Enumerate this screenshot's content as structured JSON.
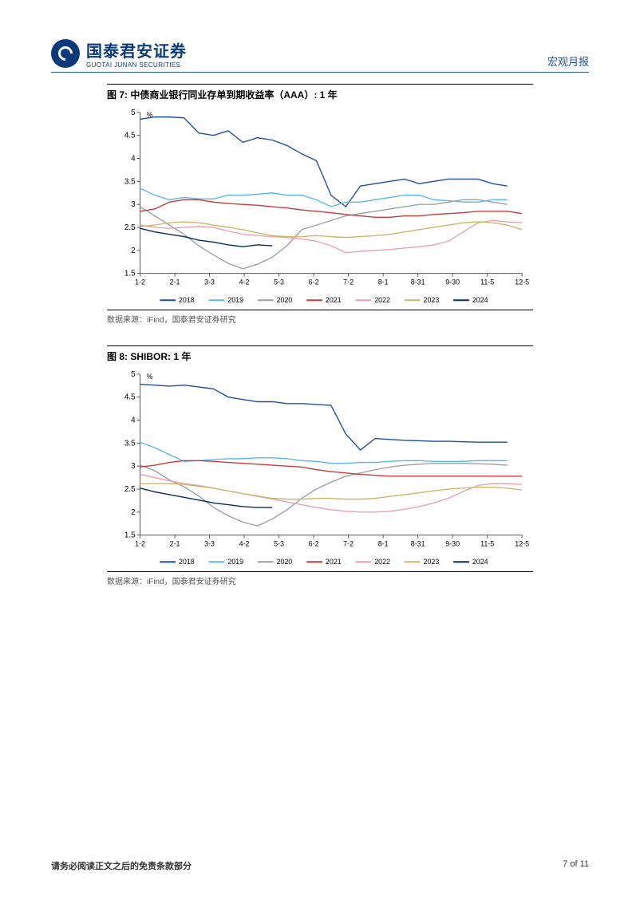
{
  "header": {
    "company_name": "国泰君安证券",
    "company_en": "GUOTAI JUNAN SECURITIES",
    "doc_type": "宏观月报"
  },
  "chart7": {
    "type": "line",
    "title": "图 7:  中债商业银行同业存单到期收益率（AAA）:  1 年",
    "source": "数据来源：iFind，国泰君安证券研究",
    "y_unit": "%",
    "ylim": [
      1.5,
      5
    ],
    "ytick": [
      1.5,
      2,
      2.5,
      3,
      3.5,
      4,
      4.5,
      5
    ],
    "x_labels": [
      "1-2",
      "2-1",
      "3-3",
      "4-2",
      "5-3",
      "6-2",
      "7-2",
      "8-1",
      "8-31",
      "9-30",
      "11-5",
      "12-5"
    ],
    "legend": [
      "2018",
      "2019",
      "2020",
      "2021",
      "2022",
      "2023",
      "2024"
    ],
    "colors": {
      "2018": "#1f4e9c",
      "2019": "#5bb5e8",
      "2020": "#9aa0a6",
      "2021": "#c43c3c",
      "2022": "#e7a1b0",
      "2023": "#c9b86a",
      "2024": "#0b2a5c"
    },
    "line_width": 1.4,
    "background_color": "#ffffff",
    "series": {
      "2018": [
        4.85,
        4.9,
        4.9,
        4.88,
        4.55,
        4.5,
        4.6,
        4.35,
        4.45,
        4.4,
        4.28,
        4.1,
        3.95,
        3.2,
        2.95,
        3.4,
        3.45,
        3.5,
        3.55,
        3.45,
        3.5,
        3.55,
        3.55,
        3.55,
        3.45,
        3.4
      ],
      "2019": [
        3.35,
        3.2,
        3.1,
        3.15,
        3.12,
        3.12,
        3.2,
        3.2,
        3.22,
        3.25,
        3.2,
        3.2,
        3.1,
        2.95,
        3.05,
        3.05,
        3.1,
        3.15,
        3.2,
        3.2,
        3.1,
        3.08,
        3.05,
        3.05,
        3.1,
        3.1
      ],
      "2020": [
        2.95,
        2.75,
        2.55,
        2.35,
        2.1,
        1.9,
        1.72,
        1.6,
        1.7,
        1.85,
        2.1,
        2.45,
        2.55,
        2.65,
        2.75,
        2.8,
        2.85,
        2.9,
        2.95,
        3.0,
        3.0,
        3.05,
        3.1,
        3.1,
        3.05,
        3.0
      ],
      "2021": [
        2.85,
        2.9,
        3.05,
        3.1,
        3.1,
        3.05,
        3.02,
        3.0,
        2.98,
        2.95,
        2.92,
        2.88,
        2.85,
        2.82,
        2.78,
        2.75,
        2.72,
        2.72,
        2.75,
        2.75,
        2.78,
        2.8,
        2.82,
        2.85,
        2.85,
        2.85,
        2.8
      ],
      "2022": [
        2.55,
        2.5,
        2.48,
        2.5,
        2.52,
        2.5,
        2.42,
        2.35,
        2.32,
        2.3,
        2.28,
        2.25,
        2.2,
        2.1,
        1.95,
        1.98,
        2.0,
        2.02,
        2.05,
        2.08,
        2.12,
        2.2,
        2.4,
        2.6,
        2.65,
        2.62,
        2.6
      ],
      "2023": [
        2.52,
        2.55,
        2.6,
        2.62,
        2.6,
        2.55,
        2.5,
        2.45,
        2.38,
        2.32,
        2.3,
        2.3,
        2.32,
        2.3,
        2.28,
        2.3,
        2.32,
        2.35,
        2.4,
        2.45,
        2.5,
        2.55,
        2.6,
        2.62,
        2.6,
        2.55,
        2.45
      ],
      "2024": [
        2.48,
        2.4,
        2.35,
        2.3,
        2.22,
        2.18,
        2.12,
        2.08,
        2.12,
        2.1
      ]
    }
  },
  "chart8": {
    "type": "line",
    "title": "图 8:  SHIBOR:  1 年",
    "source": "数据来源：iFind，国泰君安证券研究",
    "y_unit": "%",
    "ylim": [
      1.5,
      5
    ],
    "ytick": [
      1.5,
      2,
      2.5,
      3,
      3.5,
      4,
      4.5,
      5
    ],
    "x_labels": [
      "1-2",
      "2-1",
      "3-3",
      "4-2",
      "5-3",
      "6-2",
      "7-2",
      "8-1",
      "8-31",
      "9-30",
      "11-5",
      "12-5"
    ],
    "legend": [
      "2018",
      "2019",
      "2020",
      "2021",
      "2022",
      "2023",
      "2024"
    ],
    "colors": {
      "2018": "#1f4e9c",
      "2019": "#5bb5e8",
      "2020": "#9aa0a6",
      "2021": "#c43c3c",
      "2022": "#e7a1b0",
      "2023": "#c9b86a",
      "2024": "#0b2a5c"
    },
    "line_width": 1.4,
    "background_color": "#ffffff",
    "series": {
      "2018": [
        4.78,
        4.76,
        4.74,
        4.76,
        4.72,
        4.68,
        4.5,
        4.45,
        4.4,
        4.4,
        4.36,
        4.36,
        4.34,
        4.32,
        3.7,
        3.35,
        3.6,
        3.58,
        3.56,
        3.55,
        3.54,
        3.54,
        3.53,
        3.52,
        3.52,
        3.52
      ],
      "2019": [
        3.52,
        3.4,
        3.25,
        3.1,
        3.12,
        3.14,
        3.16,
        3.16,
        3.18,
        3.18,
        3.16,
        3.12,
        3.1,
        3.06,
        3.06,
        3.08,
        3.08,
        3.1,
        3.12,
        3.12,
        3.1,
        3.1,
        3.1,
        3.12,
        3.12,
        3.12
      ],
      "2020": [
        3.02,
        2.9,
        2.7,
        2.55,
        2.35,
        2.1,
        1.92,
        1.78,
        1.7,
        1.85,
        2.05,
        2.3,
        2.5,
        2.65,
        2.78,
        2.85,
        2.92,
        2.98,
        3.02,
        3.04,
        3.06,
        3.06,
        3.06,
        3.05,
        3.04,
        3.02
      ],
      "2021": [
        2.98,
        3.02,
        3.08,
        3.12,
        3.12,
        3.1,
        3.08,
        3.06,
        3.04,
        3.02,
        3.0,
        2.98,
        2.92,
        2.88,
        2.85,
        2.82,
        2.8,
        2.78,
        2.78,
        2.78,
        2.78,
        2.78,
        2.78,
        2.78,
        2.78,
        2.78,
        2.78
      ],
      "2022": [
        2.82,
        2.75,
        2.68,
        2.62,
        2.58,
        2.52,
        2.46,
        2.4,
        2.34,
        2.28,
        2.22,
        2.16,
        2.1,
        2.05,
        2.02,
        2.0,
        2.0,
        2.02,
        2.06,
        2.12,
        2.2,
        2.3,
        2.45,
        2.58,
        2.62,
        2.62,
        2.6
      ],
      "2023": [
        2.62,
        2.62,
        2.62,
        2.6,
        2.56,
        2.52,
        2.46,
        2.4,
        2.35,
        2.3,
        2.28,
        2.28,
        2.3,
        2.3,
        2.28,
        2.28,
        2.3,
        2.34,
        2.38,
        2.42,
        2.46,
        2.5,
        2.52,
        2.54,
        2.54,
        2.52,
        2.48
      ],
      "2024": [
        2.52,
        2.44,
        2.38,
        2.32,
        2.26,
        2.2,
        2.16,
        2.12,
        2.1,
        2.1
      ]
    }
  },
  "footer": {
    "left": "请务必阅读正文之后的免责条款部分",
    "right": "7 of 11"
  }
}
